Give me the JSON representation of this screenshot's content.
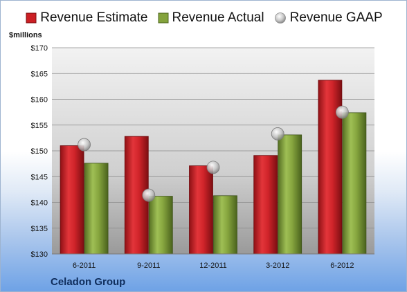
{
  "chart_data": {
    "type": "bar",
    "categories": [
      "6-2011",
      "9-2011",
      "12-2011",
      "3-2012",
      "6-2012"
    ],
    "series": [
      {
        "name": "Revenue Estimate",
        "values": [
          151.0,
          152.8,
          147.1,
          149.1,
          163.7
        ],
        "color": "#cc1f24"
      },
      {
        "name": "Revenue Actual",
        "values": [
          147.6,
          141.2,
          141.3,
          153.1,
          157.4
        ],
        "color": "#84a33c"
      }
    ],
    "points": [
      {
        "name": "Revenue GAAP",
        "values": [
          151.2,
          141.4,
          146.8,
          153.3,
          157.5
        ],
        "color": "#b8b8b8"
      }
    ],
    "ylabel": "$millions",
    "ylim": [
      130,
      170
    ],
    "yticks": [
      "$130",
      "$135",
      "$140",
      "$145",
      "$150",
      "$155",
      "$160",
      "$165",
      "$170"
    ],
    "grid": true,
    "legend_position": "top"
  },
  "footer": {
    "company": "Celadon Group"
  }
}
